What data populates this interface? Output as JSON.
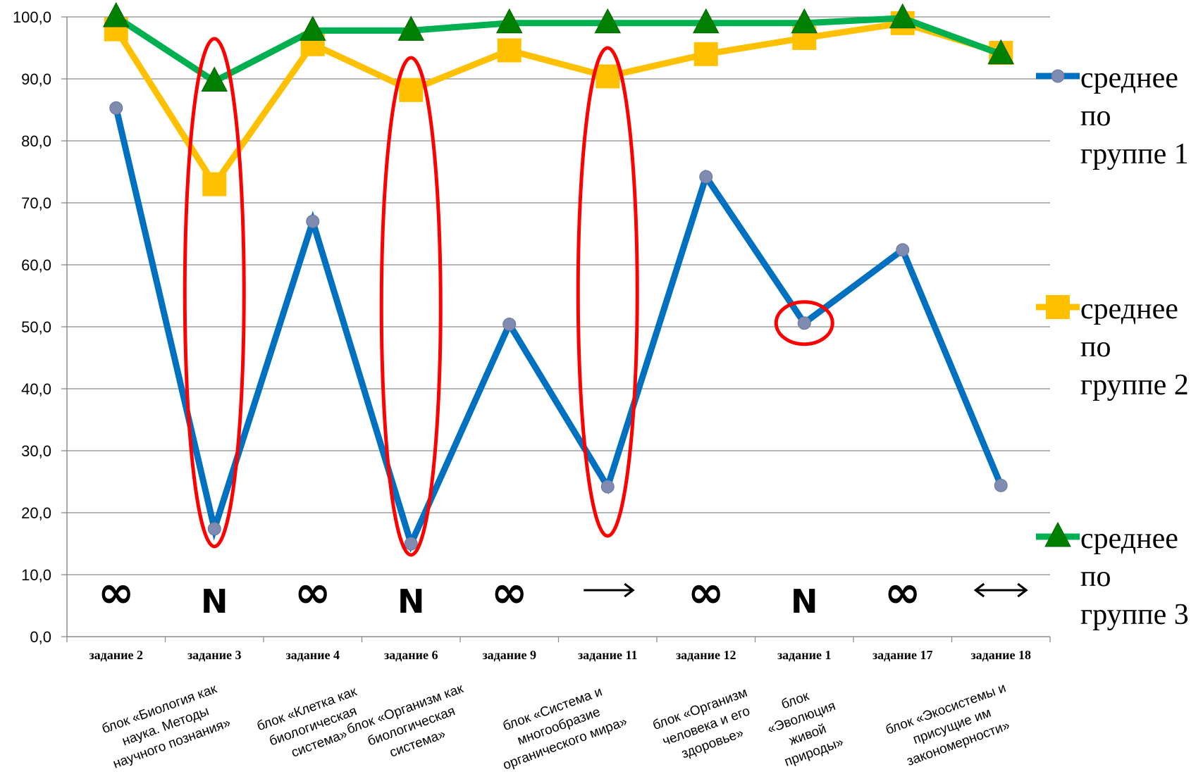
{
  "chart_data": {
    "type": "line",
    "ylim": [
      0,
      100
    ],
    "y_ticks": [
      "0,0",
      "10,0",
      "20,0",
      "30,0",
      "40,0",
      "50,0",
      "60,0",
      "70,0",
      "80,0",
      "90,0",
      "100,0"
    ],
    "grid": "horizontal",
    "legend_position": "right",
    "categories": [
      "задание 2",
      "задание 3",
      "задание 4",
      "задание 6",
      "задание 9",
      "задание 11",
      "задание 12",
      "задание 1",
      "задание 17",
      "задание 18"
    ],
    "series": [
      {
        "name": "среднее по группе 1",
        "color": "#0070C0",
        "marker": "circle",
        "values": [
          85.3,
          17.4,
          67.0,
          15.0,
          50.4,
          24.2,
          74.2,
          50.6,
          62.4,
          24.4
        ]
      },
      {
        "name": "среднее по группе 2",
        "color": "#FFC000",
        "marker": "square",
        "values": [
          98.0,
          73.0,
          95.6,
          88.2,
          94.6,
          90.4,
          94.0,
          96.6,
          99.0,
          94.2
        ]
      },
      {
        "name": "среднее по группе 3",
        "color": "#00B050",
        "marker": "triangle",
        "values": [
          100.0,
          89.6,
          97.8,
          97.8,
          99.0,
          99.0,
          99.0,
          99.0,
          99.8,
          94.0
        ]
      }
    ],
    "symbols": [
      "∞",
      "N",
      "∞",
      "N",
      "∞",
      "→",
      "∞",
      "N",
      "∞",
      "↔"
    ],
    "blocks": [
      {
        "lines": [
          "блок «Биология как",
          "наука. Методы",
          "научного познания»"
        ],
        "span": [
          0,
          1
        ]
      },
      {
        "lines": [
          "блок «Клетка как",
          "биологическая",
          "система»"
        ],
        "span": [
          2,
          2
        ]
      },
      {
        "lines": [
          "блок «Организм как",
          "биологическая",
          "система»"
        ],
        "span": [
          3,
          3
        ]
      },
      {
        "lines": [
          "блок «Система и",
          "многообразие",
          "органического мира»"
        ],
        "span": [
          4,
          5
        ]
      },
      {
        "lines": [
          "блок «Организм",
          "человека и его",
          "здоровье»"
        ],
        "span": [
          6,
          6
        ]
      },
      {
        "lines": [
          "блок",
          "«Эволюция",
          "живой",
          "природы»"
        ],
        "span": [
          7,
          7
        ]
      },
      {
        "lines": [
          "блок «Экосистемы и",
          "присущие им",
          "закономерности»"
        ],
        "span": [
          8,
          9
        ]
      }
    ],
    "highlighted": [
      1,
      3,
      5,
      7
    ],
    "highlight_color": "#FF0000"
  }
}
